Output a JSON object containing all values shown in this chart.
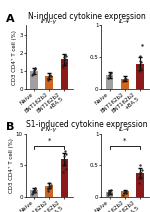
{
  "title_A": "N-induced cytokine expression",
  "title_B": "S1-induced cytokine expression",
  "subtitle_IFN": "IFN-γ",
  "subtitle_IL4": "IL-4",
  "ylabel": "CD3 CD4⁺ T cell (%)",
  "colors": [
    "#a0a0a0",
    "#cc6622",
    "#8b1a1a"
  ],
  "panel_A_IFN": {
    "means": [
      1.0,
      0.72,
      1.65
    ],
    "errors": [
      0.18,
      0.14,
      0.3
    ],
    "ylim": [
      0,
      3.5
    ],
    "yticks": [
      0,
      1,
      2,
      3
    ],
    "yticklabels": [
      "0",
      "1",
      "2",
      "3"
    ],
    "dots": [
      [
        0.75,
        0.85,
        0.95,
        1.05,
        1.15,
        1.1
      ],
      [
        0.5,
        0.6,
        0.72,
        0.8,
        0.7
      ],
      [
        1.2,
        1.35,
        1.55,
        1.75,
        1.9,
        1.65,
        1.45,
        1.8
      ]
    ]
  },
  "panel_A_IL4": {
    "means": [
      0.22,
      0.16,
      0.4
    ],
    "errors": [
      0.05,
      0.04,
      0.1
    ],
    "ylim": [
      0,
      1.0
    ],
    "yticks": [
      0,
      0.5,
      1.0
    ],
    "yticklabels": [
      "0",
      "0.5",
      "1"
    ],
    "dots": [
      [
        0.18,
        0.22,
        0.26,
        0.2,
        0.25
      ],
      [
        0.12,
        0.15,
        0.18,
        0.16
      ],
      [
        0.28,
        0.36,
        0.44,
        0.52,
        0.42,
        0.32,
        0.7
      ]
    ]
  },
  "panel_B_IFN": {
    "means": [
      1.1,
      1.8,
      6.0
    ],
    "errors": [
      0.28,
      0.4,
      1.0
    ],
    "ylim": [
      0,
      10
    ],
    "yticks": [
      0,
      5,
      10
    ],
    "yticklabels": [
      "0",
      "5",
      "10"
    ],
    "dots": [
      [
        0.5,
        0.7,
        0.9,
        1.2,
        1.0,
        1.3,
        0.8,
        1.5
      ],
      [
        0.9,
        1.3,
        1.8,
        2.2,
        1.6,
        1.4,
        1.9
      ],
      [
        4.0,
        5.0,
        5.8,
        6.5,
        7.2,
        5.5,
        4.5,
        6.8
      ]
    ],
    "sig_bracket": [
      0,
      2,
      "*"
    ]
  },
  "panel_B_IL4": {
    "means": [
      0.08,
      0.09,
      0.38
    ],
    "errors": [
      0.025,
      0.025,
      0.08
    ],
    "ylim": [
      0,
      1.0
    ],
    "yticks": [
      0,
      0.5,
      1.0
    ],
    "yticklabels": [
      "0",
      "0.5",
      "1"
    ],
    "dots": [
      [
        0.04,
        0.06,
        0.08,
        0.1,
        0.07,
        0.09,
        0.05,
        0.11
      ],
      [
        0.04,
        0.07,
        0.09,
        0.08,
        0.06,
        0.1
      ],
      [
        0.22,
        0.3,
        0.4,
        0.5,
        0.38,
        0.32,
        0.42
      ]
    ],
    "sig_bracket": [
      0,
      2,
      "*"
    ]
  },
  "label_A": "A",
  "label_B": "B",
  "background_color": "#ffffff",
  "bar_alpha": 1.0,
  "dot_size": 3,
  "dot_color": "#222222",
  "errorbar_capsize": 1.5,
  "errorbar_lw": 0.8,
  "tick_label_fontsize": 4.0,
  "axis_label_fontsize": 4.0,
  "title_fontsize": 5.5,
  "subtitle_fontsize": 4.5,
  "panel_label_fontsize": 8,
  "xticklabels": [
    "Naive",
    "BNT162b2",
    "BNT162b2\n+BA.5"
  ]
}
